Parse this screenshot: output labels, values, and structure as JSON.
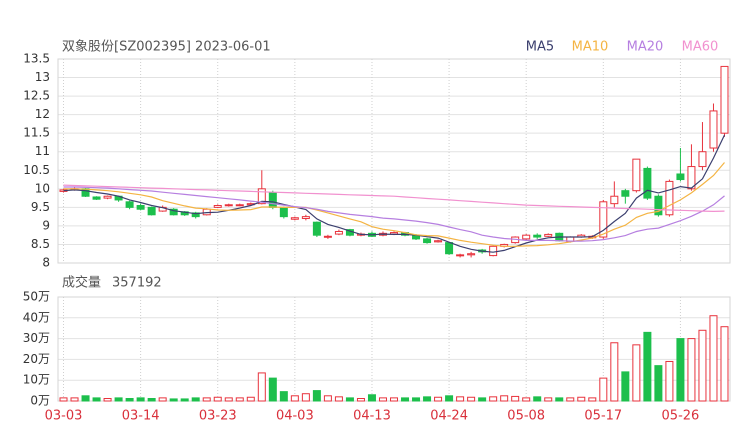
{
  "chart_data": {
    "type": "candlestick",
    "title": "双象股份[SZ002395] 2023-06-01",
    "categories": [
      "03-03",
      null,
      null,
      null,
      null,
      null,
      null,
      "03-14",
      null,
      null,
      null,
      null,
      null,
      null,
      "03-23",
      null,
      null,
      null,
      null,
      null,
      null,
      "04-03",
      null,
      null,
      null,
      null,
      null,
      null,
      "04-13",
      null,
      null,
      null,
      null,
      null,
      null,
      "04-24",
      null,
      null,
      null,
      null,
      null,
      null,
      "05-08",
      null,
      null,
      null,
      null,
      null,
      null,
      "05-17",
      null,
      null,
      null,
      null,
      null,
      null,
      "05-26",
      null,
      null,
      null,
      null
    ],
    "open": [
      9.93,
      9.97,
      10.0,
      9.78,
      9.75,
      9.8,
      9.65,
      9.55,
      9.5,
      9.4,
      9.45,
      9.38,
      9.35,
      9.3,
      9.5,
      9.55,
      9.55,
      9.57,
      9.6,
      9.9,
      9.5,
      9.18,
      9.2,
      9.1,
      8.7,
      8.78,
      8.9,
      8.75,
      8.8,
      8.75,
      8.78,
      8.82,
      8.75,
      8.65,
      8.57,
      8.55,
      8.2,
      8.22,
      8.35,
      8.2,
      8.45,
      8.55,
      8.65,
      8.75,
      8.72,
      8.8,
      8.58,
      8.7,
      8.68,
      8.7,
      9.6,
      9.95,
      9.95,
      10.55,
      9.8,
      9.3,
      10.4,
      10.0,
      10.6,
      11.1,
      11.5
    ],
    "high": [
      10.0,
      10.05,
      10.02,
      9.8,
      9.82,
      9.82,
      9.68,
      9.6,
      9.52,
      9.55,
      9.48,
      9.4,
      9.38,
      9.48,
      9.58,
      9.6,
      9.6,
      9.63,
      10.5,
      9.95,
      9.52,
      9.25,
      9.3,
      9.12,
      8.76,
      8.9,
      8.92,
      8.82,
      8.85,
      8.85,
      8.85,
      8.84,
      8.78,
      8.68,
      8.63,
      8.56,
      8.25,
      8.3,
      8.38,
      8.47,
      8.52,
      8.72,
      8.78,
      8.8,
      8.8,
      8.82,
      8.72,
      8.78,
      8.75,
      9.7,
      10.2,
      10.0,
      10.8,
      10.6,
      9.85,
      10.25,
      11.1,
      11.2,
      11.8,
      12.3,
      13.3
    ],
    "low": [
      9.9,
      9.95,
      9.78,
      9.7,
      9.72,
      9.65,
      9.45,
      9.42,
      9.28,
      9.38,
      9.28,
      9.27,
      9.2,
      9.28,
      9.48,
      9.52,
      9.53,
      9.55,
      9.58,
      9.45,
      9.2,
      9.15,
      9.15,
      8.7,
      8.65,
      8.75,
      8.72,
      8.72,
      8.7,
      8.72,
      8.75,
      8.72,
      8.62,
      8.52,
      8.55,
      8.22,
      8.15,
      8.15,
      8.25,
      8.18,
      8.42,
      8.52,
      8.62,
      8.65,
      8.7,
      8.58,
      8.55,
      8.68,
      8.65,
      8.65,
      9.5,
      9.6,
      9.9,
      9.7,
      9.25,
      9.25,
      10.2,
      9.95,
      10.5,
      11.0,
      11.4
    ],
    "close": [
      9.97,
      10.0,
      9.8,
      9.72,
      9.8,
      9.7,
      9.5,
      9.45,
      9.3,
      9.5,
      9.3,
      9.3,
      9.25,
      9.45,
      9.55,
      9.57,
      9.57,
      9.6,
      10.0,
      9.5,
      9.25,
      9.22,
      9.25,
      8.75,
      8.72,
      8.85,
      8.75,
      8.78,
      8.72,
      8.8,
      8.82,
      8.75,
      8.65,
      8.55,
      8.6,
      8.25,
      8.22,
      8.25,
      8.3,
      8.45,
      8.5,
      8.7,
      8.75,
      8.7,
      8.77,
      8.6,
      8.7,
      8.75,
      8.72,
      9.65,
      9.8,
      9.8,
      10.8,
      9.75,
      9.3,
      10.2,
      10.25,
      10.6,
      11.0,
      12.1,
      13.3
    ],
    "up_color": "#e8323c",
    "down_color": "#1dbf4c",
    "ylim": [
      8,
      13.5
    ],
    "yticks": [
      8,
      8.5,
      9,
      9.5,
      10,
      10.5,
      11,
      11.5,
      12,
      12.5,
      13,
      13.5
    ],
    "grid": true,
    "series": [
      {
        "name": "MA5",
        "color": "#3b3f6e",
        "values": [
          9.95,
          9.97,
          9.95,
          9.9,
          9.86,
          9.8,
          9.7,
          9.63,
          9.55,
          9.49,
          9.41,
          9.37,
          9.33,
          9.36,
          9.37,
          9.42,
          9.48,
          9.55,
          9.66,
          9.65,
          9.58,
          9.51,
          9.44,
          9.19,
          9.04,
          8.96,
          8.86,
          8.77,
          8.76,
          8.78,
          8.77,
          8.77,
          8.75,
          8.71,
          8.67,
          8.56,
          8.45,
          8.37,
          8.32,
          8.29,
          8.34,
          8.44,
          8.54,
          8.62,
          8.68,
          8.7,
          8.7,
          8.7,
          8.71,
          8.88,
          9.12,
          9.34,
          9.75,
          9.96,
          9.89,
          9.97,
          10.06,
          10.02,
          10.27,
          10.83,
          11.45
        ]
      },
      {
        "name": "MA10",
        "color": "#f4b443",
        "values": [
          10.0,
          10.0,
          9.99,
          9.97,
          9.95,
          9.92,
          9.88,
          9.84,
          9.78,
          9.68,
          9.61,
          9.54,
          9.48,
          9.46,
          9.43,
          9.42,
          9.43,
          9.44,
          9.51,
          9.51,
          9.5,
          9.5,
          9.5,
          9.43,
          9.35,
          9.27,
          9.19,
          9.11,
          8.98,
          8.91,
          8.87,
          8.82,
          8.76,
          8.74,
          8.73,
          8.67,
          8.61,
          8.56,
          8.52,
          8.48,
          8.45,
          8.45,
          8.46,
          8.47,
          8.49,
          8.52,
          8.57,
          8.62,
          8.67,
          8.78,
          8.91,
          9.02,
          9.23,
          9.34,
          9.39,
          9.55,
          9.7,
          9.89,
          10.12,
          10.36,
          10.71
        ]
      },
      {
        "name": "MA20",
        "color": "#b67fe0",
        "values": [
          10.05,
          10.05,
          10.04,
          10.03,
          10.02,
          10.0,
          9.98,
          9.96,
          9.94,
          9.91,
          9.88,
          9.85,
          9.82,
          9.79,
          9.76,
          9.73,
          9.7,
          9.67,
          9.64,
          9.6,
          9.56,
          9.52,
          9.49,
          9.45,
          9.39,
          9.35,
          9.31,
          9.28,
          9.25,
          9.21,
          9.19,
          9.16,
          9.13,
          9.09,
          9.04,
          8.97,
          8.9,
          8.84,
          8.75,
          8.7,
          8.66,
          8.64,
          8.61,
          8.61,
          8.61,
          8.6,
          8.59,
          8.59,
          8.6,
          8.63,
          8.68,
          8.74,
          8.85,
          8.91,
          8.94,
          9.04,
          9.14,
          9.26,
          9.4,
          9.57,
          9.81
        ]
      },
      {
        "name": "MA60",
        "color": "#f191cf",
        "values": [
          10.1,
          10.09,
          10.08,
          10.07,
          10.06,
          10.05,
          10.04,
          10.03,
          10.02,
          10.01,
          10.0,
          9.99,
          9.98,
          9.97,
          9.96,
          9.95,
          9.94,
          9.93,
          9.92,
          9.91,
          9.9,
          9.89,
          9.88,
          9.87,
          9.86,
          9.85,
          9.84,
          9.83,
          9.82,
          9.81,
          9.8,
          9.78,
          9.76,
          9.74,
          9.72,
          9.7,
          9.68,
          9.66,
          9.64,
          9.62,
          9.6,
          9.58,
          9.56,
          9.55,
          9.54,
          9.53,
          9.52,
          9.51,
          9.5,
          9.49,
          9.48,
          9.47,
          9.46,
          9.45,
          9.44,
          9.43,
          9.42,
          9.41,
          9.4,
          9.39,
          9.4
        ]
      }
    ],
    "volume": {
      "label": "成交量",
      "latest": 357192,
      "values": [
        1.5,
        1.5,
        2.5,
        1.5,
        1.2,
        1.5,
        1.2,
        1.5,
        1.2,
        1.5,
        1.0,
        1.0,
        1.5,
        1.5,
        1.8,
        1.5,
        1.5,
        1.8,
        13.5,
        11,
        4.5,
        2.5,
        3.5,
        5,
        2.5,
        2,
        1.5,
        1.2,
        3,
        1.5,
        1.5,
        1.5,
        1.5,
        2,
        1.8,
        2.5,
        2,
        1.8,
        1.5,
        2,
        2.5,
        2.2,
        1.5,
        2,
        1.5,
        1.5,
        1.5,
        1.8,
        1.5,
        11,
        28,
        14,
        27,
        33,
        17,
        19,
        30,
        30,
        34,
        41,
        35.7192
      ],
      "ylim": [
        0,
        50
      ],
      "yticks": [
        {
          "value": 0,
          "label": "0万"
        },
        {
          "value": 10,
          "label": "10万"
        },
        {
          "value": 20,
          "label": "20万"
        },
        {
          "value": 30,
          "label": "30万"
        },
        {
          "value": 40,
          "label": "40万"
        },
        {
          "value": 50,
          "label": "50万"
        }
      ]
    }
  }
}
